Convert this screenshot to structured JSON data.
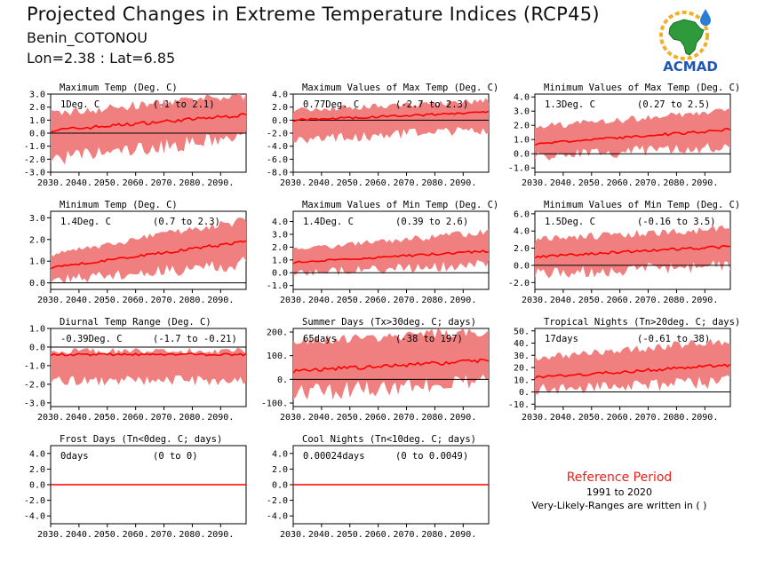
{
  "header": {
    "title": "Projected Changes in Extreme Temperature Indices (RCP45)",
    "location": "Benin_COTONOU",
    "coords": "Lon=2.38 : Lat=6.85"
  },
  "logo": {
    "text": "ACMAD",
    "icon": "africa-map-sun-logo"
  },
  "reference": {
    "title": "Reference Period",
    "period": "1991 to 2020",
    "note": "Very-Likely-Ranges are written in ( )"
  },
  "colors": {
    "band": "#f08080",
    "mean": "#ff0000",
    "zero": "#000000",
    "ref_title": "#e8201c"
  },
  "chart_data": [
    {
      "type": "area",
      "title": "Maximum Temp (Deg. C)",
      "value_label": "1Deg. C",
      "range_label": "(-1 to 2.1)",
      "x_ticks": [
        "2030.",
        "2040.",
        "2050.",
        "2060.",
        "2070.",
        "2080.",
        "2090."
      ],
      "y_ticks": [
        "3.0",
        "2.0",
        "1.0",
        "0.0",
        "-1.0",
        "-2.0",
        "-3.0"
      ],
      "ylim": [
        -3,
        3
      ],
      "x": [
        2030,
        2099
      ],
      "mean_start": 0.2,
      "mean_end": 1.4,
      "lower_start": -2.0,
      "lower_end": -0.3,
      "upper_start": 1.5,
      "upper_end": 2.9
    },
    {
      "type": "area",
      "title": "Maximum Values of Max Temp (Deg. C)",
      "value_label": "0.77Deg. C",
      "range_label": "(-2.7 to 2.3)",
      "x_ticks": [
        "2030.",
        "2040.",
        "2050.",
        "2060.",
        "2070.",
        "2080.",
        "2090."
      ],
      "y_ticks": [
        "4.0",
        "2.0",
        "0.0",
        "-2.0",
        "-4.0",
        "-6.0",
        "-8.0"
      ],
      "ylim": [
        -8,
        4
      ],
      "x": [
        2030,
        2099
      ],
      "mean_start": 0.0,
      "mean_end": 1.2,
      "lower_start": -3.0,
      "lower_end": -1.5,
      "upper_start": 1.5,
      "upper_end": 3.0
    },
    {
      "type": "area",
      "title": "Minimum Values of Max Temp (Deg. C)",
      "value_label": "1.3Deg. C",
      "range_label": "(0.27 to 2.5)",
      "x_ticks": [
        "2030.",
        "2040.",
        "2050.",
        "2060.",
        "2070.",
        "2080.",
        "2090."
      ],
      "y_ticks": [
        "4.0",
        "3.0",
        "2.0",
        "1.0",
        "0.0",
        "-1.0"
      ],
      "ylim": [
        -1.3,
        4.2
      ],
      "x": [
        2030,
        2099
      ],
      "mean_start": 0.7,
      "mean_end": 1.7,
      "lower_start": -0.2,
      "lower_end": 0.5,
      "upper_start": 1.9,
      "upper_end": 3.0
    },
    {
      "type": "area",
      "title": "Minimum Temp (Deg. C)",
      "value_label": "1.4Deg. C",
      "range_label": "(0.7 to 2.3)",
      "x_ticks": [
        "2030.",
        "2040.",
        "2050.",
        "2060.",
        "2070.",
        "2080.",
        "2090."
      ],
      "y_ticks": [
        "3.0",
        "2.0",
        "1.0",
        "0.0"
      ],
      "ylim": [
        -0.3,
        3.3
      ],
      "x": [
        2030,
        2099
      ],
      "mean_start": 0.7,
      "mean_end": 1.9,
      "lower_start": 0.1,
      "lower_end": 0.9,
      "upper_start": 1.3,
      "upper_end": 2.9
    },
    {
      "type": "area",
      "title": "Maximum Values of Min Temp (Deg. C)",
      "value_label": "1.4Deg. C",
      "range_label": "(0.39 to 2.6)",
      "x_ticks": [
        "2030.",
        "2040.",
        "2050.",
        "2060.",
        "2070.",
        "2080.",
        "2090."
      ],
      "y_ticks": [
        "4.0",
        "3.0",
        "2.0",
        "1.0",
        "0.0",
        "-1.0"
      ],
      "ylim": [
        -1.3,
        4.8
      ],
      "x": [
        2030,
        2099
      ],
      "mean_start": 0.8,
      "mean_end": 1.7,
      "lower_start": 0.0,
      "lower_end": 0.6,
      "upper_start": 1.8,
      "upper_end": 3.2
    },
    {
      "type": "area",
      "title": "Minimum Values of Min Temp (Deg. C)",
      "value_label": "1.5Deg. C",
      "range_label": "(-0.16 to 3.5)",
      "x_ticks": [
        "2030.",
        "2040.",
        "2050.",
        "2060.",
        "2070.",
        "2080.",
        "2090."
      ],
      "y_ticks": [
        "6.0",
        "4.0",
        "2.0",
        "0.0",
        "-2.0"
      ],
      "ylim": [
        -2.8,
        6.3
      ],
      "x": [
        2030,
        2099
      ],
      "mean_start": 1.0,
      "mean_end": 2.2,
      "lower_start": -1.0,
      "lower_end": 0.0,
      "upper_start": 3.0,
      "upper_end": 4.3
    },
    {
      "type": "area",
      "title": "Diurnal Temp Range (Deg. C)",
      "value_label": "-0.39Deg. C",
      "range_label": "(-1.7 to -0.21)",
      "x_ticks": [
        "2030.",
        "2040.",
        "2050.",
        "2060.",
        "2070.",
        "2080.",
        "2090."
      ],
      "y_ticks": [
        "1.0",
        "0.0",
        "-1.0",
        "-2.0",
        "-3.0"
      ],
      "ylim": [
        -3.2,
        1.0
      ],
      "x": [
        2030,
        2099
      ],
      "mean_start": -0.4,
      "mean_end": -0.4,
      "lower_start": -1.8,
      "lower_end": -1.8,
      "upper_start": -0.2,
      "upper_end": -0.2
    },
    {
      "type": "area",
      "title": "Summer Days (Tx>30deg. C; days)",
      "value_label": "65days",
      "range_label": "(-38 to 197)",
      "x_ticks": [
        "2030.",
        "2040.",
        "2050.",
        "2060.",
        "2070.",
        "2080.",
        "2090."
      ],
      "y_ticks": [
        "200.",
        "100.",
        "0.",
        "-100."
      ],
      "ylim": [
        -115,
        215
      ],
      "x": [
        2030,
        2099
      ],
      "mean_start": 35,
      "mean_end": 80,
      "lower_start": -60,
      "lower_end": -5,
      "upper_start": 160,
      "upper_end": 205
    },
    {
      "type": "area",
      "title": "Tropical Nights (Tn>20deg. C; days)",
      "value_label": "17days",
      "range_label": "(-0.61 to 38)",
      "x_ticks": [
        "2030.",
        "2040.",
        "2050.",
        "2060.",
        "2070.",
        "2080.",
        "2090."
      ],
      "y_ticks": [
        "50.",
        "40.",
        "30.",
        "20.",
        "10.",
        "0.",
        "-10."
      ],
      "ylim": [
        -12,
        52
      ],
      "x": [
        2030,
        2099
      ],
      "mean_start": 12,
      "mean_end": 22,
      "lower_start": 2,
      "lower_end": 8,
      "upper_start": 28,
      "upper_end": 42
    },
    {
      "type": "area",
      "title": "Frost Days (Tn<0deg. C; days)",
      "value_label": "0days",
      "range_label": "(0 to 0)",
      "x_ticks": [
        "2030.",
        "2040.",
        "2050.",
        "2060.",
        "2070.",
        "2080.",
        "2090."
      ],
      "y_ticks": [
        "4.0",
        "2.0",
        "0.0",
        "-2.0",
        "-4.0"
      ],
      "ylim": [
        -5,
        5
      ],
      "x": [
        2030,
        2099
      ],
      "mean_start": 0,
      "mean_end": 0,
      "lower_start": 0,
      "lower_end": 0,
      "upper_start": 0,
      "upper_end": 0
    },
    {
      "type": "area",
      "title": "Cool Nights (Tn<10deg. C; days)",
      "value_label": "0.00024days",
      "range_label": "(0 to 0.0049)",
      "x_ticks": [
        "2030.",
        "2040.",
        "2050.",
        "2060.",
        "2070.",
        "2080.",
        "2090."
      ],
      "y_ticks": [
        "4.0",
        "2.0",
        "0.0",
        "-2.0",
        "-4.0"
      ],
      "ylim": [
        -5,
        5
      ],
      "x": [
        2030,
        2099
      ],
      "mean_start": 0,
      "mean_end": 0,
      "lower_start": 0,
      "lower_end": 0,
      "upper_start": 0,
      "upper_end": 0
    }
  ]
}
